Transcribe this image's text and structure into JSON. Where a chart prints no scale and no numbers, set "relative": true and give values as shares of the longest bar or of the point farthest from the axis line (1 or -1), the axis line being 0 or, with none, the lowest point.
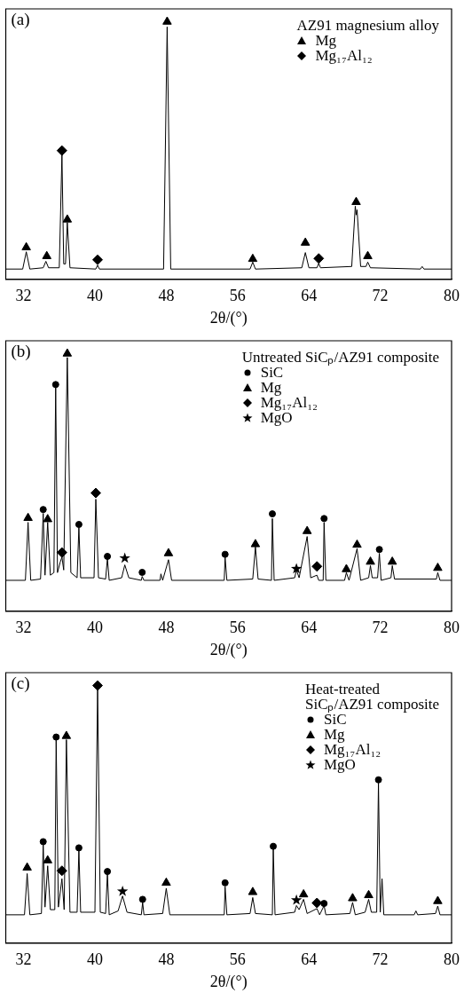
{
  "chart_data": [
    {
      "type": "line",
      "annotations": [
        "(a)"
      ],
      "xlabel": "2θ/(°)",
      "legend_title": "AZ91 magnesium alloy",
      "legend": "top right",
      "relative": true,
      "grid": false,
      "tick_labels": "x",
      "xlim": [
        30,
        80
      ],
      "xticks": [
        32,
        40,
        48,
        56,
        64,
        72,
        80
      ],
      "series": [
        {
          "color": "#000000",
          "marker": "none",
          "x": [
            30,
            31.9,
            32.3,
            32.7,
            34.2,
            34.5,
            34.8,
            36.0,
            36.3,
            36.5,
            36.7,
            36.9,
            37.2,
            40.1,
            40.3,
            40.5,
            47.7,
            48.1,
            48.5,
            57.4,
            57.7,
            58.0,
            63.2,
            63.6,
            64.0,
            64.9,
            65.1,
            65.3,
            68.8,
            69.2,
            69.3,
            69.4,
            69.8,
            70.4,
            70.6,
            70.9,
            76.5,
            76.7,
            76.9,
            80
          ],
          "values": [
            0.04,
            0.04,
            0.107,
            0.04,
            0.045,
            0.07,
            0.045,
            0.045,
            0.483,
            0.06,
            0.06,
            0.22,
            0.045,
            0.04,
            0.055,
            0.04,
            0.04,
            0.98,
            0.04,
            0.04,
            0.067,
            0.04,
            0.045,
            0.104,
            0.045,
            0.045,
            0.062,
            0.045,
            0.05,
            0.284,
            0.25,
            0.27,
            0.05,
            0.05,
            0.067,
            0.045,
            0.04,
            0.05,
            0.04,
            0.04
          ]
        },
        {
          "name": "Mg",
          "type": "scatter",
          "marker": "triangle",
          "color": "#000000",
          "x": [
            32.3,
            34.6,
            36.9,
            48.1,
            57.7,
            63.6,
            69.3,
            70.6
          ],
          "values": [
            0.124,
            0.09,
            0.232,
            1.0,
            0.079,
            0.142,
            0.3,
            0.09
          ]
        },
        {
          "name": "Mg₁₇Al₁₂",
          "type": "scatter",
          "marker": "diamond",
          "color": "#000000",
          "x": [
            36.3,
            40.3,
            65.1
          ],
          "values": [
            0.5,
            0.076,
            0.081
          ]
        }
      ]
    },
    {
      "type": "line",
      "annotations": [
        "(b)"
      ],
      "xlabel": "2θ/(°)",
      "legend_title": "Untreated SiCₚ/AZ91 composite",
      "legend": "top right",
      "relative": true,
      "grid": false,
      "tick_labels": "x",
      "xlim": [
        30,
        80
      ],
      "xticks": [
        32,
        40,
        48,
        56,
        64,
        72,
        80
      ],
      "series": [
        {
          "color": "#000000",
          "marker": "none",
          "x": [
            30,
            32.2,
            32.5,
            32.8,
            33.9,
            34.2,
            34.4,
            34.7,
            35.0,
            35.4,
            35.6,
            35.8,
            36.1,
            36.3,
            36.5,
            36.9,
            37.3,
            38.0,
            38.2,
            38.4,
            39.9,
            40.1,
            40.4,
            41.2,
            41.4,
            41.6,
            43.0,
            43.35,
            43.8,
            45.2,
            45.3,
            45.5,
            47.3,
            47.4,
            47.6,
            48.25,
            48.6,
            54.5,
            54.6,
            54.8,
            57.7,
            58.0,
            58.3,
            59.8,
            59.9,
            60.1,
            62.4,
            62.6,
            62.9,
            63.8,
            64.2,
            64.9,
            65.1,
            65.6,
            65.7,
            65.9,
            68.0,
            68.2,
            68.5,
            69.4,
            69.8,
            70.7,
            70.9,
            71.1,
            71.7,
            71.9,
            72.1,
            73.2,
            73.35,
            73.6,
            78.3,
            78.45,
            78.7,
            80
          ],
          "values": [
            0.12,
            0.12,
            0.345,
            0.12,
            0.125,
            0.38,
            0.14,
            0.345,
            0.14,
            0.15,
            0.87,
            0.15,
            0.19,
            0.21,
            0.16,
            0.985,
            0.15,
            0.13,
            0.325,
            0.13,
            0.13,
            0.435,
            0.13,
            0.125,
            0.205,
            0.12,
            0.13,
            0.18,
            0.13,
            0.12,
            0.135,
            0.12,
            0.12,
            0.145,
            0.12,
            0.2,
            0.12,
            0.12,
            0.21,
            0.12,
            0.125,
            0.25,
            0.125,
            0.12,
            0.36,
            0.12,
            0.13,
            0.16,
            0.13,
            0.29,
            0.13,
            0.14,
            0.12,
            0.12,
            0.345,
            0.12,
            0.12,
            0.15,
            0.12,
            0.243,
            0.12,
            0.13,
            0.177,
            0.13,
            0.13,
            0.225,
            0.12,
            0.13,
            0.177,
            0.125,
            0.125,
            0.15,
            0.12,
            0.12
          ]
        },
        {
          "name": "SiC",
          "type": "scatter",
          "marker": "circle",
          "color": "#000000",
          "x": [
            34.2,
            35.6,
            38.2,
            41.4,
            45.3,
            54.6,
            59.9,
            65.7,
            71.9
          ],
          "values": [
            0.395,
            0.88,
            0.337,
            0.213,
            0.151,
            0.221,
            0.378,
            0.36,
            0.24
          ]
        },
        {
          "name": "Mg",
          "type": "scatter",
          "marker": "triangle",
          "color": "#000000",
          "x": [
            32.5,
            34.7,
            36.9,
            48.25,
            58.0,
            63.8,
            68.2,
            69.4,
            70.9,
            73.35,
            78.45
          ],
          "values": [
            0.362,
            0.357,
            1.0,
            0.225,
            0.26,
            0.311,
            0.163,
            0.258,
            0.192,
            0.192,
            0.168
          ]
        },
        {
          "name": "Mg₁₇Al₁₂",
          "type": "scatter",
          "marker": "diamond",
          "color": "#000000",
          "x": [
            36.3,
            40.1,
            64.9
          ],
          "values": [
            0.228,
            0.459,
            0.174
          ]
        },
        {
          "name": "MgO",
          "type": "scatter",
          "marker": "star",
          "color": "#000000",
          "x": [
            43.35,
            62.6
          ],
          "values": [
            0.206,
            0.165
          ]
        }
      ]
    },
    {
      "type": "line",
      "annotations": [
        "(c)"
      ],
      "xlabel": "2θ/(°)",
      "legend_title": "Heat-treated\nSiCₚ/AZ91 composite",
      "legend": "top right",
      "relative": true,
      "grid": false,
      "tick_labels": "x",
      "xlim": [
        30,
        80
      ],
      "xticks": [
        32,
        40,
        48,
        56,
        64,
        72,
        80
      ],
      "series": [
        {
          "color": "#000000",
          "marker": "none",
          "x": [
            30,
            32.1,
            32.4,
            32.7,
            34.0,
            34.2,
            34.4,
            34.7,
            35.0,
            35.5,
            35.65,
            35.9,
            36.3,
            36.55,
            36.8,
            37.2,
            38.0,
            38.2,
            38.4,
            40.0,
            40.3,
            40.6,
            41.2,
            41.4,
            41.6,
            42.6,
            43.1,
            43.6,
            45.2,
            45.35,
            45.5,
            47.6,
            48.0,
            48.4,
            54.5,
            54.6,
            54.8,
            57.4,
            57.7,
            58.0,
            59.9,
            60.0,
            60.2,
            62.4,
            62.6,
            62.9,
            63.4,
            63.8,
            64.9,
            65.2,
            65.7,
            65.9,
            68.6,
            68.9,
            69.2,
            70.3,
            70.7,
            71.0,
            71.6,
            71.8,
            72.0,
            72.2,
            72.4,
            75.8,
            76,
            76.2,
            78.2,
            78.45,
            78.7,
            80
          ],
          "values": [
            0.11,
            0.11,
            0.27,
            0.11,
            0.115,
            0.385,
            0.14,
            0.3,
            0.13,
            0.13,
            0.79,
            0.14,
            0.25,
            0.13,
            0.79,
            0.12,
            0.12,
            0.36,
            0.12,
            0.12,
            0.988,
            0.12,
            0.115,
            0.27,
            0.11,
            0.125,
            0.183,
            0.12,
            0.11,
            0.158,
            0.11,
            0.115,
            0.213,
            0.11,
            0.11,
            0.219,
            0.11,
            0.115,
            0.177,
            0.115,
            0.11,
            0.366,
            0.11,
            0.12,
            0.146,
            0.13,
            0.17,
            0.115,
            0.134,
            0.11,
            0.146,
            0.11,
            0.115,
            0.158,
            0.11,
            0.12,
            0.17,
            0.12,
            0.12,
            0.622,
            0.12,
            0.25,
            0.11,
            0.11,
            0.125,
            0.11,
            0.115,
            0.144,
            0.11,
            0.11
          ]
        },
        {
          "name": "SiC",
          "type": "scatter",
          "marker": "circle",
          "color": "#000000",
          "x": [
            34.2,
            35.65,
            38.2,
            41.4,
            45.35,
            54.6,
            60.0,
            65.7,
            71.8
          ],
          "values": [
            0.394,
            0.8,
            0.37,
            0.278,
            0.17,
            0.234,
            0.376,
            0.154,
            0.634
          ]
        },
        {
          "name": "Mg",
          "type": "scatter",
          "marker": "triangle",
          "color": "#000000",
          "x": [
            32.4,
            34.7,
            36.8,
            48.0,
            57.7,
            63.4,
            68.9,
            70.7,
            78.45
          ],
          "values": [
            0.293,
            0.321,
            0.804,
            0.234,
            0.198,
            0.189,
            0.174,
            0.186,
            0.163
          ]
        },
        {
          "name": "Mg₁₇Al₁₂",
          "type": "scatter",
          "marker": "diamond",
          "color": "#000000",
          "x": [
            36.3,
            40.3,
            64.9
          ],
          "values": [
            0.281,
            1.0,
            0.156
          ]
        },
        {
          "name": "MgO",
          "type": "scatter",
          "marker": "star",
          "color": "#000000",
          "x": [
            43.1,
            62.6
          ],
          "values": [
            0.201,
            0.167
          ]
        }
      ]
    }
  ]
}
